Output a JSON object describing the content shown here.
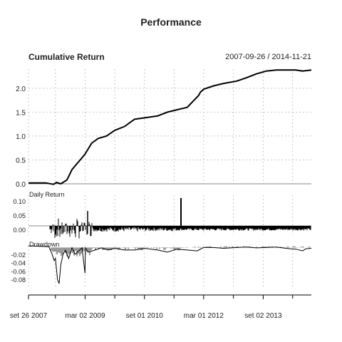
{
  "chart_data": {
    "type": "line",
    "title": "Performance",
    "date_range": "2007-09-26 / 2014-11-21",
    "x_range": [
      "2007-09-26",
      "2014-11-21"
    ],
    "x_tick_labels": [
      "set 26 2007",
      "mar 02 2009",
      "set 01 2010",
      "mar 01 2012",
      "set 02 2013"
    ],
    "x_ticks": [
      "2007-09-26",
      "2009-03-02",
      "2010-09-01",
      "2012-03-01",
      "2013-09-02"
    ],
    "x_minor_ticks": [
      "2008-06-01",
      "2009-12-01",
      "2011-06-01",
      "2012-12-01",
      "2014-06-01"
    ],
    "panels": [
      {
        "name": "Cumulative Return",
        "ylim": [
          0,
          2.4
        ],
        "y_ticks": [
          0.0,
          0.5,
          1.0,
          1.5,
          2.0
        ],
        "y_tick_labels": [
          "0.0",
          "0.5",
          "1.0",
          "1.5",
          "2.0"
        ],
        "series": [
          {
            "dates": [
              "2007-09-26",
              "2008-03-01",
              "2008-05-15",
              "2008-06-10",
              "2008-07-20",
              "2008-09-15",
              "2008-11-01",
              "2009-01-15",
              "2009-03-01",
              "2009-05-01",
              "2009-07-01",
              "2009-09-15",
              "2009-12-01",
              "2010-03-01",
              "2010-06-01",
              "2010-09-01",
              "2011-01-01",
              "2011-04-01",
              "2011-07-01",
              "2011-10-01",
              "2012-01-15",
              "2012-02-01",
              "2012-03-01",
              "2012-06-01",
              "2012-09-01",
              "2013-01-01",
              "2013-04-01",
              "2013-07-01",
              "2013-10-01",
              "2014-01-01",
              "2014-04-01",
              "2014-07-01",
              "2014-09-01",
              "2014-11-21"
            ],
            "values": [
              0.02,
              0.02,
              -0.01,
              0.03,
              0.0,
              0.08,
              0.3,
              0.5,
              0.62,
              0.85,
              0.95,
              1.0,
              1.12,
              1.2,
              1.35,
              1.38,
              1.42,
              1.5,
              1.55,
              1.6,
              1.85,
              1.92,
              1.98,
              2.05,
              2.1,
              2.15,
              2.22,
              2.3,
              2.36,
              2.38,
              2.38,
              2.38,
              2.36,
              2.38
            ]
          }
        ]
      },
      {
        "name": "Daily Return",
        "ylim": [
          -0.02,
          0.12
        ],
        "y_ticks": [
          0.0,
          0.05,
          0.1
        ],
        "y_tick_labels": [
          "0.00",
          "0.05",
          "0.10"
        ]
      },
      {
        "name": "Drawdown",
        "ylim": [
          -0.1,
          0.0
        ],
        "y_ticks": [
          -0.02,
          -0.04,
          -0.06,
          -0.08
        ],
        "y_tick_labels": [
          "-0.02",
          "-0.04",
          "-0.06",
          "-0.08"
        ],
        "series": [
          {
            "dates": [
              "2007-09-26",
              "2008-04-01",
              "2008-05-01",
              "2008-05-20",
              "2008-06-01",
              "2008-06-20",
              "2008-07-05",
              "2008-07-20",
              "2008-08-10",
              "2008-09-01",
              "2008-10-01",
              "2008-11-01",
              "2008-12-01",
              "2009-01-10",
              "2009-02-01",
              "2009-03-01",
              "2009-03-05",
              "2009-04-01",
              "2009-06-01",
              "2009-08-01",
              "2009-10-01",
              "2009-12-01",
              "2010-03-01",
              "2010-06-01",
              "2010-09-01",
              "2011-01-01",
              "2011-04-01",
              "2011-07-01",
              "2011-10-01",
              "2012-01-01",
              "2012-02-15",
              "2012-03-01",
              "2012-06-01",
              "2012-09-01",
              "2013-01-01",
              "2013-04-01",
              "2013-07-01",
              "2013-10-01",
              "2014-01-01",
              "2014-04-01",
              "2014-07-01",
              "2014-09-01",
              "2014-10-01",
              "2014-11-21"
            ],
            "values": [
              0,
              -0.002,
              -0.02,
              -0.035,
              -0.03,
              -0.08,
              -0.09,
              -0.045,
              -0.02,
              -0.01,
              -0.03,
              -0.005,
              -0.02,
              -0.01,
              -0.005,
              -0.065,
              -0.005,
              -0.015,
              -0.01,
              -0.005,
              -0.01,
              -0.006,
              -0.01,
              -0.01,
              -0.006,
              -0.01,
              -0.015,
              -0.008,
              -0.01,
              -0.012,
              -0.006,
              -0.004,
              -0.004,
              -0.006,
              -0.004,
              -0.003,
              -0.005,
              -0.004,
              -0.003,
              -0.006,
              -0.008,
              -0.012,
              -0.007,
              -0.006
            ]
          }
        ]
      }
    ]
  }
}
